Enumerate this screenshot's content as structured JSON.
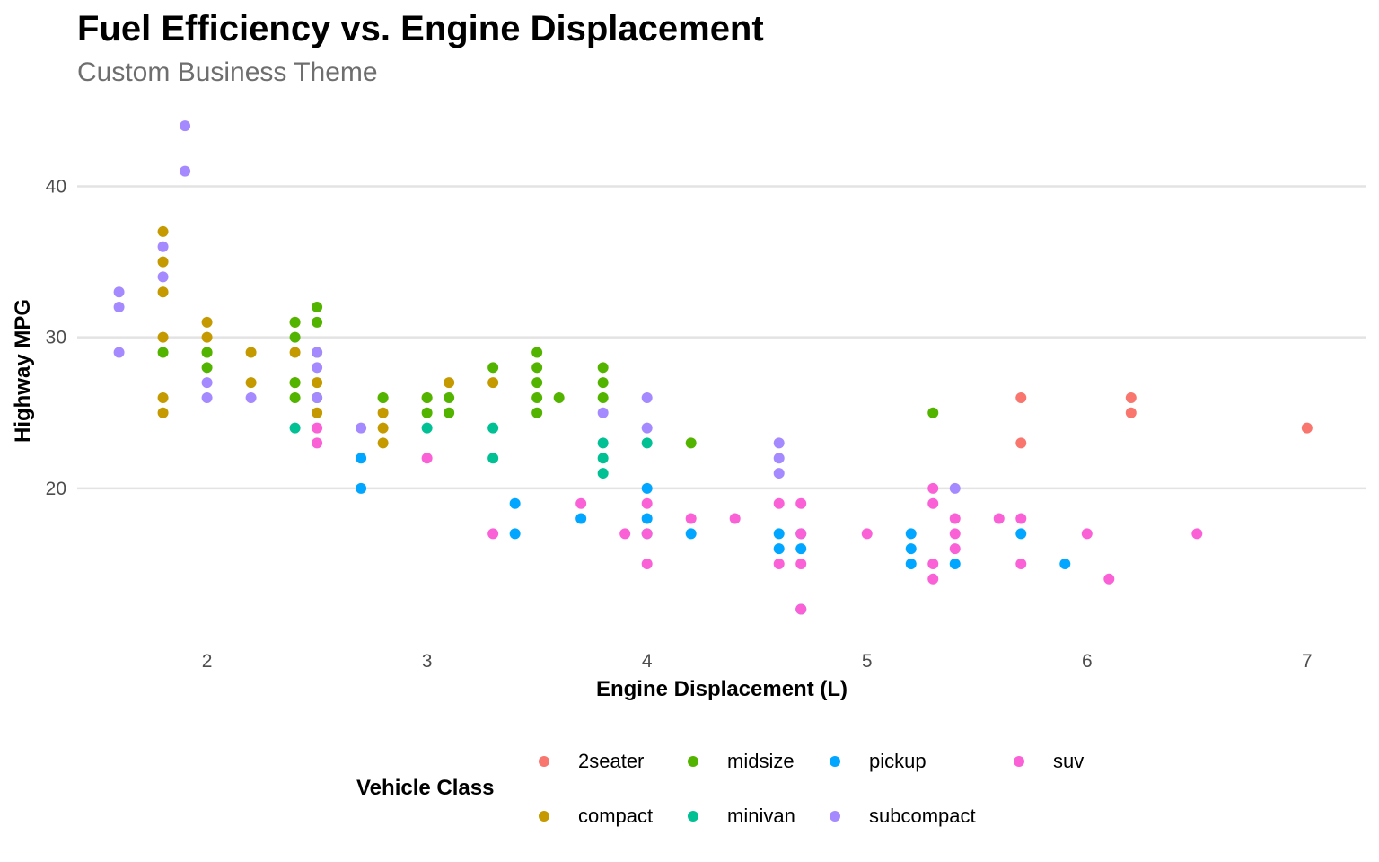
{
  "chart_data": {
    "type": "scatter",
    "title": "Fuel Efficiency vs. Engine Displacement",
    "subtitle": "Custom Business Theme",
    "xlabel": "Engine Displacement (L)",
    "ylabel": "Highway MPG",
    "xlim": [
      1.41,
      7.27
    ],
    "ylim": [
      10.6,
      45.2
    ],
    "x_ticks": [
      2,
      3,
      4,
      5,
      6,
      7
    ],
    "y_ticks": [
      20,
      30,
      40
    ],
    "grid": "horizontal-major",
    "legend": {
      "title": "Vehicle Class",
      "position": "bottom",
      "entries": [
        {
          "name": "2seater",
          "color": "#F8766D"
        },
        {
          "name": "compact",
          "color": "#C49A00"
        },
        {
          "name": "midsize",
          "color": "#53B400"
        },
        {
          "name": "minivan",
          "color": "#00C094"
        },
        {
          "name": "pickup",
          "color": "#00A6FF"
        },
        {
          "name": "subcompact",
          "color": "#A58AFF"
        },
        {
          "name": "suv",
          "color": "#FB61D7"
        }
      ]
    },
    "series": [
      {
        "name": "2seater",
        "color": "#F8766D",
        "points": [
          [
            5.7,
            26
          ],
          [
            5.7,
            23
          ],
          [
            6.2,
            26
          ],
          [
            6.2,
            25
          ],
          [
            7.0,
            24
          ]
        ]
      },
      {
        "name": "compact",
        "color": "#C49A00",
        "points": [
          [
            1.8,
            37
          ],
          [
            1.8,
            35
          ],
          [
            1.8,
            33
          ],
          [
            1.8,
            30
          ],
          [
            1.8,
            26
          ],
          [
            1.8,
            25
          ],
          [
            2.0,
            31
          ],
          [
            2.0,
            30
          ],
          [
            2.0,
            29
          ],
          [
            2.2,
            29
          ],
          [
            2.2,
            27
          ],
          [
            2.4,
            31
          ],
          [
            2.4,
            29
          ],
          [
            2.4,
            27
          ],
          [
            2.5,
            27
          ],
          [
            2.5,
            25
          ],
          [
            2.8,
            26
          ],
          [
            2.8,
            25
          ],
          [
            2.8,
            24
          ],
          [
            2.8,
            23
          ],
          [
            3.0,
            26
          ],
          [
            3.1,
            27
          ],
          [
            3.3,
            27
          ]
        ]
      },
      {
        "name": "midsize",
        "color": "#53B400",
        "points": [
          [
            1.8,
            29
          ],
          [
            2.0,
            29
          ],
          [
            2.0,
            28
          ],
          [
            2.4,
            31
          ],
          [
            2.4,
            30
          ],
          [
            2.4,
            27
          ],
          [
            2.4,
            26
          ],
          [
            2.5,
            32
          ],
          [
            2.5,
            31
          ],
          [
            2.5,
            29
          ],
          [
            2.5,
            26
          ],
          [
            2.8,
            26
          ],
          [
            3.0,
            26
          ],
          [
            3.0,
            25
          ],
          [
            3.1,
            26
          ],
          [
            3.1,
            25
          ],
          [
            3.3,
            28
          ],
          [
            3.5,
            29
          ],
          [
            3.5,
            28
          ],
          [
            3.5,
            27
          ],
          [
            3.5,
            26
          ],
          [
            3.5,
            25
          ],
          [
            3.6,
            26
          ],
          [
            3.8,
            28
          ],
          [
            3.8,
            27
          ],
          [
            3.8,
            26
          ],
          [
            4.2,
            23
          ],
          [
            5.3,
            25
          ]
        ]
      },
      {
        "name": "minivan",
        "color": "#00C094",
        "points": [
          [
            2.4,
            24
          ],
          [
            3.0,
            24
          ],
          [
            3.3,
            24
          ],
          [
            3.3,
            22
          ],
          [
            3.8,
            23
          ],
          [
            3.8,
            22
          ],
          [
            3.8,
            21
          ],
          [
            4.0,
            23
          ]
        ]
      },
      {
        "name": "pickup",
        "color": "#00A6FF",
        "points": [
          [
            2.7,
            22
          ],
          [
            2.7,
            20
          ],
          [
            3.4,
            19
          ],
          [
            3.4,
            17
          ],
          [
            3.7,
            18
          ],
          [
            4.0,
            20
          ],
          [
            4.0,
            18
          ],
          [
            4.0,
            17
          ],
          [
            4.2,
            17
          ],
          [
            4.6,
            17
          ],
          [
            4.6,
            16
          ],
          [
            4.7,
            17
          ],
          [
            4.7,
            16
          ],
          [
            4.7,
            12
          ],
          [
            5.2,
            17
          ],
          [
            5.2,
            16
          ],
          [
            5.2,
            15
          ],
          [
            5.4,
            15
          ],
          [
            5.7,
            17
          ],
          [
            5.9,
            15
          ]
        ]
      },
      {
        "name": "subcompact",
        "color": "#A58AFF",
        "points": [
          [
            1.6,
            33
          ],
          [
            1.6,
            32
          ],
          [
            1.6,
            29
          ],
          [
            1.8,
            36
          ],
          [
            1.8,
            34
          ],
          [
            1.9,
            44
          ],
          [
            1.9,
            41
          ],
          [
            2.0,
            27
          ],
          [
            2.0,
            26
          ],
          [
            2.2,
            26
          ],
          [
            2.5,
            29
          ],
          [
            2.5,
            28
          ],
          [
            2.5,
            26
          ],
          [
            2.7,
            24
          ],
          [
            3.8,
            25
          ],
          [
            4.0,
            26
          ],
          [
            4.0,
            24
          ],
          [
            4.6,
            23
          ],
          [
            4.6,
            22
          ],
          [
            4.6,
            21
          ],
          [
            5.4,
            20
          ]
        ]
      },
      {
        "name": "suv",
        "color": "#FB61D7",
        "points": [
          [
            2.5,
            24
          ],
          [
            2.5,
            23
          ],
          [
            3.0,
            22
          ],
          [
            3.3,
            17
          ],
          [
            3.7,
            19
          ],
          [
            3.9,
            17
          ],
          [
            4.0,
            19
          ],
          [
            4.0,
            17
          ],
          [
            4.0,
            15
          ],
          [
            4.2,
            18
          ],
          [
            4.4,
            18
          ],
          [
            4.6,
            19
          ],
          [
            4.6,
            15
          ],
          [
            4.7,
            19
          ],
          [
            4.7,
            17
          ],
          [
            4.7,
            15
          ],
          [
            4.7,
            12
          ],
          [
            5.0,
            17
          ],
          [
            5.3,
            20
          ],
          [
            5.3,
            19
          ],
          [
            5.3,
            15
          ],
          [
            5.3,
            14
          ],
          [
            5.4,
            18
          ],
          [
            5.4,
            17
          ],
          [
            5.4,
            16
          ],
          [
            5.6,
            18
          ],
          [
            5.7,
            18
          ],
          [
            5.7,
            15
          ],
          [
            6.0,
            17
          ],
          [
            6.1,
            14
          ],
          [
            6.5,
            17
          ]
        ]
      }
    ]
  }
}
